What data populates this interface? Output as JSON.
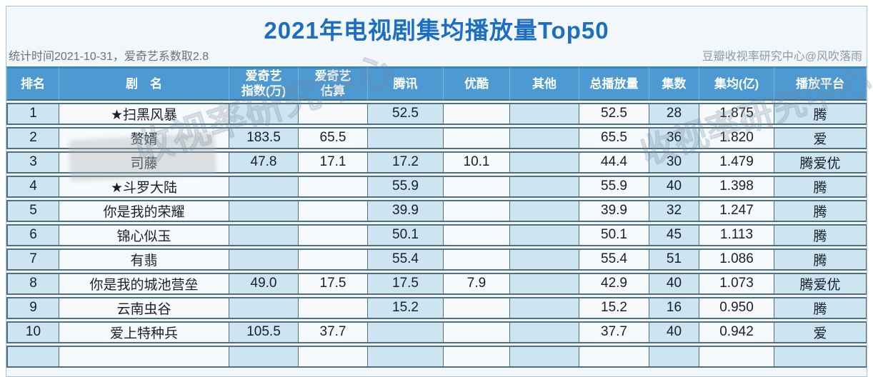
{
  "header": {
    "title": "2021年电视剧集均播放量Top50",
    "stat_note": "统计时间2021-10-31，爱奇艺系数取2.8",
    "credit": "豆瓣收视率研究中心@风吹落雨"
  },
  "watermarks": [
    "收视率研究中心",
    "收视率研究中心"
  ],
  "colors": {
    "title_blue": "#1b6ec2",
    "header_bg": "#4d9ad2",
    "cell_blue": "#cde4f1",
    "cell_white": "#f6fafc",
    "border_dark": "#51707f"
  },
  "chart_data": {
    "type": "table",
    "title": "2021年电视剧集均播放量Top50",
    "columns": [
      "排名",
      "剧　名",
      "爱奇艺\n指数(万)",
      "爱奇艺\n估算",
      "腾讯",
      "优酷",
      "其他",
      "总播放量",
      "集数",
      "集均(亿)",
      "播放平台"
    ],
    "rows": [
      [
        "1",
        "★扫黑风暴",
        "",
        "",
        "52.5",
        "",
        "",
        "52.5",
        "28",
        "1.875",
        "腾"
      ],
      [
        "2",
        "赘婿",
        "183.5",
        "65.5",
        "",
        "",
        "",
        "65.5",
        "36",
        "1.820",
        "爱"
      ],
      [
        "3",
        "司藤",
        "47.8",
        "17.1",
        "17.2",
        "10.1",
        "",
        "44.4",
        "30",
        "1.479",
        "腾爱优"
      ],
      [
        "4",
        "★斗罗大陆",
        "",
        "",
        "55.9",
        "",
        "",
        "55.9",
        "40",
        "1.398",
        "腾"
      ],
      [
        "5",
        "你是我的荣耀",
        "",
        "",
        "39.9",
        "",
        "",
        "39.9",
        "32",
        "1.247",
        "腾"
      ],
      [
        "6",
        "锦心似玉",
        "",
        "",
        "50.1",
        "",
        "",
        "50.1",
        "45",
        "1.113",
        "腾"
      ],
      [
        "7",
        "有翡",
        "",
        "",
        "55.4",
        "",
        "",
        "55.4",
        "51",
        "1.086",
        "腾"
      ],
      [
        "8",
        "你是我的城池营垒",
        "49.0",
        "17.5",
        "17.5",
        "7.9",
        "",
        "42.9",
        "40",
        "1.073",
        "腾爱优"
      ],
      [
        "9",
        "云南虫谷",
        "",
        "",
        "15.2",
        "",
        "",
        "15.2",
        "16",
        "0.950",
        "腾"
      ],
      [
        "10",
        "爱上特种兵",
        "105.5",
        "37.7",
        "",
        "",
        "",
        "37.7",
        "40",
        "0.942",
        "爱"
      ]
    ]
  }
}
